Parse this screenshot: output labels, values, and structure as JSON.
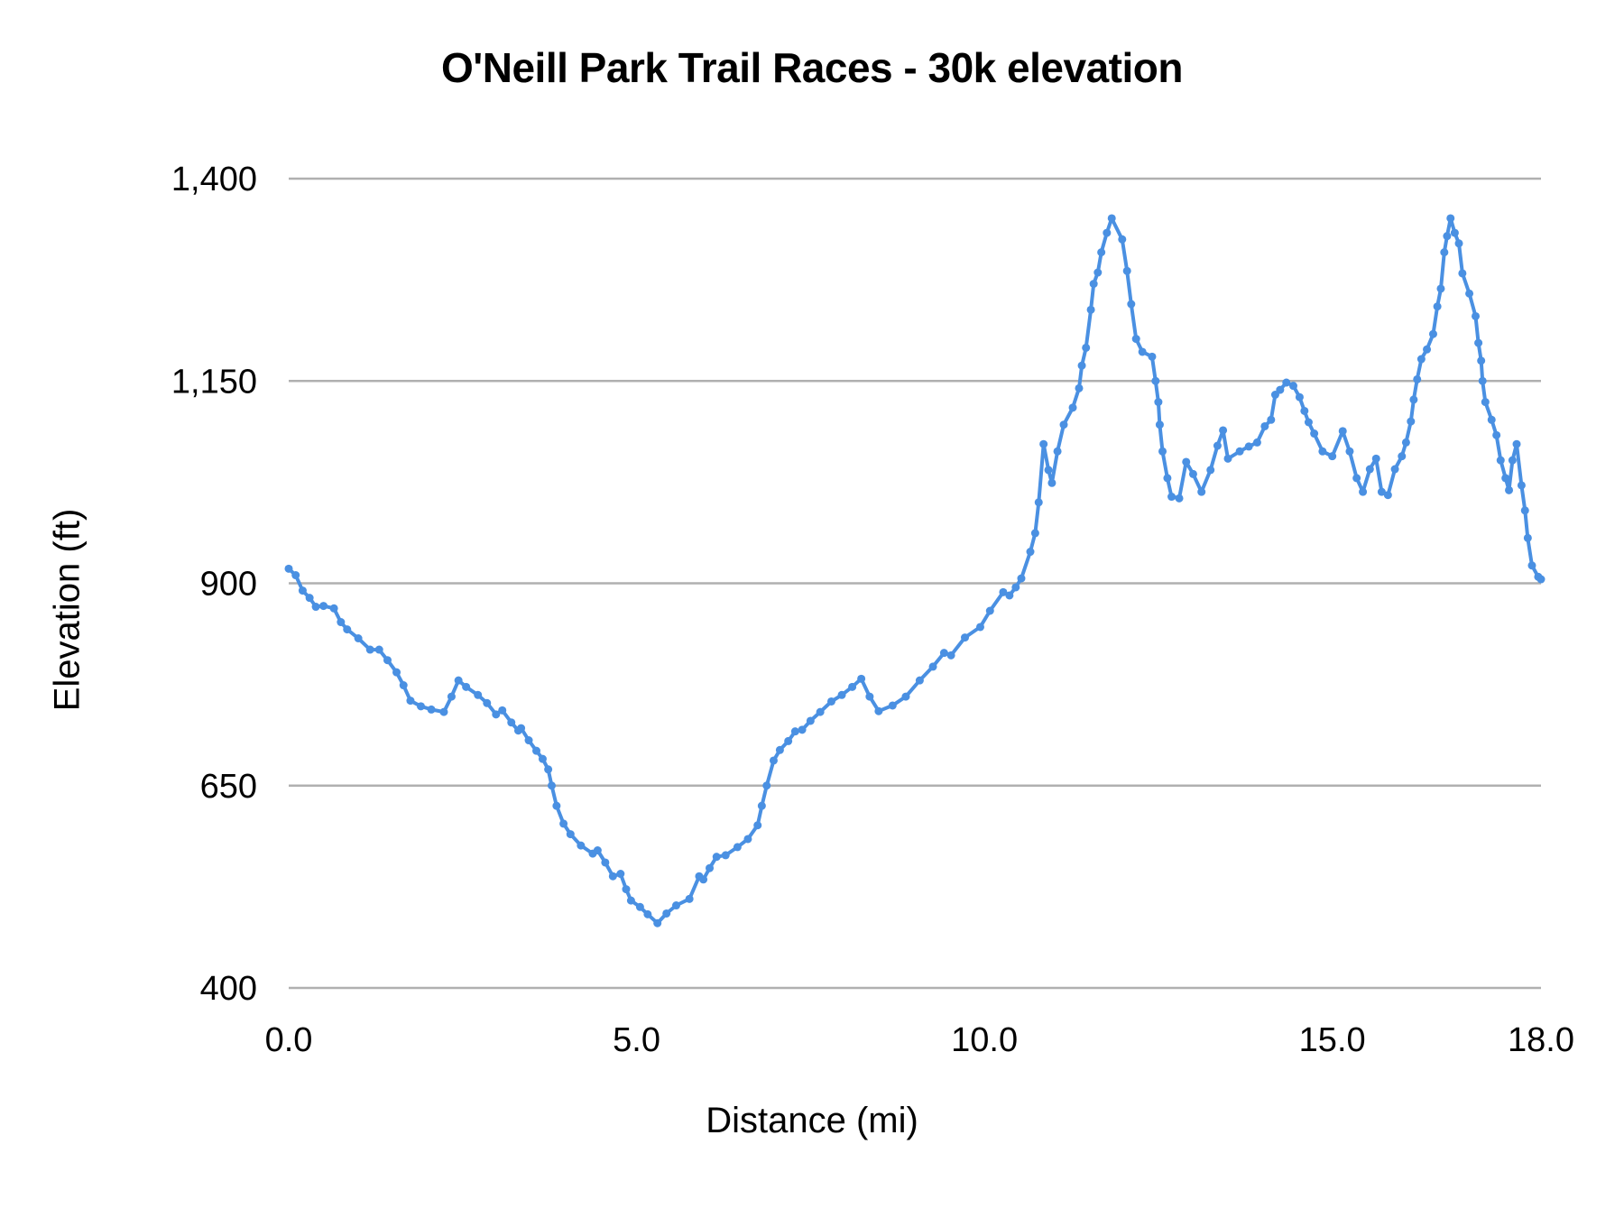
{
  "chart_data": {
    "type": "line",
    "title": "O'Neill Park Trail Races - 30k elevation",
    "xlabel": "Distance (mi)",
    "ylabel": "Elevation (ft)",
    "xlim": [
      0,
      18
    ],
    "ylim": [
      400,
      1400
    ],
    "x_ticks": [
      0,
      5,
      10,
      15,
      18
    ],
    "x_tick_labels": [
      "0.0",
      "5.0",
      "10.0",
      "15.0",
      "18.0"
    ],
    "y_ticks": [
      400,
      650,
      900,
      1150,
      1400
    ],
    "y_tick_labels": [
      "400",
      "650",
      "900",
      "1,150",
      "1,400"
    ],
    "grid": {
      "horizontal": true,
      "vertical": false
    },
    "legend": "none",
    "markers": true,
    "series": [
      {
        "name": "Elevation",
        "color": "#4a90e2",
        "points": [
          [
            0.0,
            918
          ],
          [
            0.1,
            910
          ],
          [
            0.2,
            891
          ],
          [
            0.3,
            882
          ],
          [
            0.39,
            871
          ],
          [
            0.5,
            872
          ],
          [
            0.65,
            869
          ],
          [
            0.75,
            852
          ],
          [
            0.84,
            843
          ],
          [
            1.0,
            832
          ],
          [
            1.17,
            818
          ],
          [
            1.3,
            818
          ],
          [
            1.42,
            805
          ],
          [
            1.55,
            790
          ],
          [
            1.65,
            774
          ],
          [
            1.75,
            755
          ],
          [
            1.9,
            748
          ],
          [
            2.05,
            744
          ],
          [
            2.23,
            741
          ],
          [
            2.34,
            760
          ],
          [
            2.44,
            780
          ],
          [
            2.55,
            772
          ],
          [
            2.72,
            762
          ],
          [
            2.85,
            752
          ],
          [
            2.98,
            738
          ],
          [
            3.07,
            743
          ],
          [
            3.2,
            728
          ],
          [
            3.3,
            718
          ],
          [
            3.34,
            721
          ],
          [
            3.45,
            706
          ],
          [
            3.56,
            693
          ],
          [
            3.65,
            683
          ],
          [
            3.73,
            670
          ],
          [
            3.78,
            650
          ],
          [
            3.85,
            625
          ],
          [
            3.95,
            603
          ],
          [
            4.05,
            590
          ],
          [
            4.2,
            576
          ],
          [
            4.37,
            566
          ],
          [
            4.44,
            570
          ],
          [
            4.55,
            555
          ],
          [
            4.66,
            538
          ],
          [
            4.77,
            541
          ],
          [
            4.85,
            522
          ],
          [
            4.92,
            508
          ],
          [
            5.05,
            500
          ],
          [
            5.16,
            491
          ],
          [
            5.3,
            480
          ],
          [
            5.43,
            492
          ],
          [
            5.57,
            502
          ],
          [
            5.76,
            510
          ],
          [
            5.9,
            538
          ],
          [
            5.96,
            534
          ],
          [
            6.05,
            548
          ],
          [
            6.15,
            562
          ],
          [
            6.28,
            564
          ],
          [
            6.45,
            574
          ],
          [
            6.6,
            584
          ],
          [
            6.74,
            601
          ],
          [
            6.8,
            625
          ],
          [
            6.87,
            650
          ],
          [
            6.97,
            681
          ],
          [
            7.06,
            694
          ],
          [
            7.18,
            705
          ],
          [
            7.28,
            717
          ],
          [
            7.38,
            719
          ],
          [
            7.5,
            730
          ],
          [
            7.64,
            741
          ],
          [
            7.8,
            754
          ],
          [
            7.95,
            762
          ],
          [
            8.1,
            772
          ],
          [
            8.23,
            782
          ],
          [
            8.35,
            760
          ],
          [
            8.48,
            742
          ],
          [
            8.68,
            749
          ],
          [
            8.87,
            760
          ],
          [
            9.07,
            780
          ],
          [
            9.26,
            797
          ],
          [
            9.42,
            814
          ],
          [
            9.52,
            811
          ],
          [
            9.72,
            833
          ],
          [
            9.94,
            846
          ],
          [
            10.08,
            866
          ],
          [
            10.27,
            889
          ],
          [
            10.36,
            885
          ],
          [
            10.45,
            895
          ],
          [
            10.53,
            906
          ],
          [
            10.66,
            939
          ],
          [
            10.73,
            962
          ],
          [
            10.78,
            1000
          ],
          [
            10.85,
            1072
          ],
          [
            10.92,
            1040
          ],
          [
            10.97,
            1024
          ],
          [
            11.05,
            1063
          ],
          [
            11.14,
            1096
          ],
          [
            11.27,
            1117
          ],
          [
            11.36,
            1141
          ],
          [
            11.4,
            1169
          ],
          [
            11.46,
            1191
          ],
          [
            11.53,
            1238
          ],
          [
            11.57,
            1270
          ],
          [
            11.63,
            1284
          ],
          [
            11.68,
            1309
          ],
          [
            11.76,
            1333
          ],
          [
            11.83,
            1351
          ],
          [
            11.98,
            1325
          ],
          [
            12.05,
            1286
          ],
          [
            12.11,
            1245
          ],
          [
            12.18,
            1202
          ],
          [
            12.27,
            1186
          ],
          [
            12.41,
            1180
          ],
          [
            12.46,
            1150
          ],
          [
            12.5,
            1124
          ],
          [
            12.52,
            1096
          ],
          [
            12.56,
            1063
          ],
          [
            12.63,
            1030
          ],
          [
            12.69,
            1007
          ],
          [
            12.8,
            1005
          ],
          [
            12.9,
            1050
          ],
          [
            13.0,
            1035
          ],
          [
            13.12,
            1013
          ],
          [
            13.25,
            1040
          ],
          [
            13.35,
            1070
          ],
          [
            13.43,
            1089
          ],
          [
            13.5,
            1054
          ],
          [
            13.67,
            1063
          ],
          [
            13.8,
            1069
          ],
          [
            13.92,
            1074
          ],
          [
            14.03,
            1094
          ],
          [
            14.12,
            1102
          ],
          [
            14.18,
            1133
          ],
          [
            14.25,
            1139
          ],
          [
            14.34,
            1148
          ],
          [
            14.44,
            1144
          ],
          [
            14.53,
            1130
          ],
          [
            14.6,
            1113
          ],
          [
            14.66,
            1099
          ],
          [
            14.74,
            1085
          ],
          [
            14.86,
            1063
          ],
          [
            15.0,
            1057
          ],
          [
            15.15,
            1088
          ],
          [
            15.25,
            1063
          ],
          [
            15.35,
            1030
          ],
          [
            15.44,
            1013
          ],
          [
            15.54,
            1041
          ],
          [
            15.63,
            1054
          ],
          [
            15.71,
            1013
          ],
          [
            15.8,
            1009
          ],
          [
            15.9,
            1041
          ],
          [
            16.0,
            1057
          ],
          [
            16.06,
            1074
          ],
          [
            16.13,
            1100
          ],
          [
            16.17,
            1127
          ],
          [
            16.22,
            1152
          ],
          [
            16.28,
            1177
          ],
          [
            16.36,
            1189
          ],
          [
            16.45,
            1208
          ],
          [
            16.51,
            1242
          ],
          [
            16.56,
            1264
          ],
          [
            16.61,
            1309
          ],
          [
            16.65,
            1329
          ],
          [
            16.7,
            1351
          ],
          [
            16.76,
            1333
          ],
          [
            16.82,
            1320
          ],
          [
            16.87,
            1283
          ],
          [
            16.97,
            1258
          ],
          [
            17.06,
            1230
          ],
          [
            17.1,
            1197
          ],
          [
            17.14,
            1175
          ],
          [
            17.16,
            1150
          ],
          [
            17.2,
            1124
          ],
          [
            17.29,
            1102
          ],
          [
            17.36,
            1083
          ],
          [
            17.42,
            1052
          ],
          [
            17.49,
            1030
          ],
          [
            17.54,
            1015
          ],
          [
            17.59,
            1052
          ],
          [
            17.65,
            1072
          ],
          [
            17.72,
            1021
          ],
          [
            17.77,
            990
          ],
          [
            17.81,
            956
          ],
          [
            17.87,
            922
          ],
          [
            17.96,
            908
          ],
          [
            18.0,
            905
          ]
        ]
      }
    ]
  },
  "labels": {
    "title": "O'Neill Park Trail Races - 30k elevation",
    "x_axis_title": "Distance (mi)",
    "y_axis_title": "Elevation (ft)"
  },
  "style": {
    "line_color": "#4a90e2",
    "grid_color": "#b0b0b0"
  }
}
